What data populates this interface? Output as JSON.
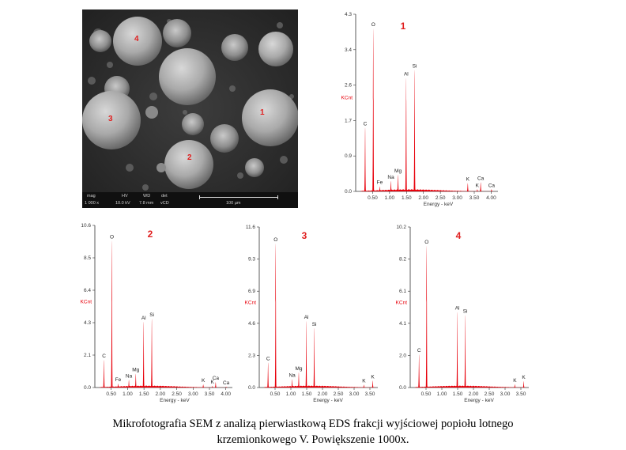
{
  "sem_image": {
    "particle_labels": [
      "4",
      "1",
      "3",
      "2"
    ],
    "databar": {
      "headers": [
        "mag",
        "HV",
        "WD",
        "det"
      ],
      "values": [
        "1 000 x",
        "10.0 kV",
        "7.8 mm",
        "vCD"
      ],
      "scale_label": "100 µm"
    }
  },
  "caption": {
    "line1": "Mikrofotografia SEM z analizą pierwiastkową EDS frakcji wyjściowej popiołu lotnego",
    "line2": "krzemionkowego V. Powiększenie 1000x."
  },
  "colors": {
    "spectrum": "#e8000b",
    "label": "#e02020",
    "axis": "#333333",
    "sem_bg": "#2b2b2b"
  },
  "chart_data": [
    {
      "type": "area",
      "title": "1",
      "xlabel": "Energy - keV",
      "ylabel": "KCnt",
      "xlim": [
        0,
        4.2
      ],
      "ylim": [
        0,
        4.3
      ],
      "xticks": [
        "0.50",
        "1.00",
        "1.50",
        "2.00",
        "2.50",
        "3.00",
        "3.50",
        "4.00"
      ],
      "yticks": [
        "0.0",
        "0.9",
        "1.7",
        "2.6",
        "3.4",
        "4.3"
      ],
      "peaks": [
        {
          "element": "C",
          "energy": 0.28,
          "counts": 1.55
        },
        {
          "element": "O",
          "energy": 0.52,
          "counts": 3.95
        },
        {
          "element": "Fe",
          "energy": 0.71,
          "counts": 0.12
        },
        {
          "element": "Na",
          "energy": 1.04,
          "counts": 0.25
        },
        {
          "element": "Mg",
          "energy": 1.25,
          "counts": 0.4
        },
        {
          "element": "Al",
          "energy": 1.49,
          "counts": 2.75
        },
        {
          "element": "Si",
          "energy": 1.74,
          "counts": 2.95
        },
        {
          "element": "K",
          "energy": 3.31,
          "counts": 0.2
        },
        {
          "element": "Ca",
          "energy": 3.69,
          "counts": 0.22
        },
        {
          "element": "K",
          "energy": 3.59,
          "counts": 0.05
        },
        {
          "element": "Ca",
          "energy": 4.01,
          "counts": 0.05
        }
      ]
    },
    {
      "type": "area",
      "title": "2",
      "xlabel": "Energy - keV",
      "ylabel": "KCnt",
      "xlim": [
        0,
        4.2
      ],
      "ylim": [
        0,
        10.6
      ],
      "xticks": [
        "0.50",
        "1.00",
        "1.50",
        "2.00",
        "2.50",
        "3.00",
        "3.50",
        "4.00"
      ],
      "yticks": [
        "0.0",
        "2.1",
        "4.3",
        "6.4",
        "8.5",
        "10.6"
      ],
      "peaks": [
        {
          "element": "C",
          "energy": 0.28,
          "counts": 1.8
        },
        {
          "element": "O",
          "energy": 0.52,
          "counts": 9.6
        },
        {
          "element": "Fe",
          "energy": 0.71,
          "counts": 0.25
        },
        {
          "element": "Na",
          "energy": 1.04,
          "counts": 0.5
        },
        {
          "element": "Mg",
          "energy": 1.25,
          "counts": 0.9
        },
        {
          "element": "Al",
          "energy": 1.49,
          "counts": 4.3
        },
        {
          "element": "Si",
          "energy": 1.74,
          "counts": 4.5
        },
        {
          "element": "K",
          "energy": 3.31,
          "counts": 0.2
        },
        {
          "element": "Ca",
          "energy": 3.69,
          "counts": 0.35
        },
        {
          "element": "K",
          "energy": 3.59,
          "counts": 0.1
        },
        {
          "element": "Ca",
          "energy": 4.01,
          "counts": 0.05
        }
      ]
    },
    {
      "type": "area",
      "title": "3",
      "xlabel": "Energy - keV",
      "ylabel": "KCnt",
      "xlim": [
        0,
        3.75
      ],
      "ylim": [
        0,
        11.6
      ],
      "xticks": [
        "0.50",
        "1.00",
        "1.50",
        "2.00",
        "2.50",
        "3.00",
        "3.50"
      ],
      "yticks": [
        "0.0",
        "2.3",
        "4.6",
        "6.9",
        "9.3",
        "11.6"
      ],
      "peaks": [
        {
          "element": "C",
          "energy": 0.28,
          "counts": 1.8
        },
        {
          "element": "O",
          "energy": 0.52,
          "counts": 10.4
        },
        {
          "element": "Na",
          "energy": 1.04,
          "counts": 0.6
        },
        {
          "element": "Mg",
          "energy": 1.25,
          "counts": 1.1
        },
        {
          "element": "Al",
          "energy": 1.49,
          "counts": 4.8
        },
        {
          "element": "Si",
          "energy": 1.74,
          "counts": 4.3
        },
        {
          "element": "K",
          "energy": 3.31,
          "counts": 0.2
        },
        {
          "element": "K",
          "energy": 3.59,
          "counts": 0.5
        }
      ]
    },
    {
      "type": "area",
      "title": "4",
      "xlabel": "Energy - keV",
      "ylabel": "KCnt",
      "xlim": [
        0,
        3.75
      ],
      "ylim": [
        0,
        10.2
      ],
      "xticks": [
        "0.50",
        "1.00",
        "1.50",
        "2.00",
        "2.50",
        "3.00",
        "3.50"
      ],
      "yticks": [
        "0.0",
        "2.0",
        "4.1",
        "6.1",
        "8.2",
        "10.2"
      ],
      "peaks": [
        {
          "element": "C",
          "energy": 0.28,
          "counts": 2.1
        },
        {
          "element": "O",
          "energy": 0.52,
          "counts": 9.0
        },
        {
          "element": "Al",
          "energy": 1.49,
          "counts": 4.8
        },
        {
          "element": "Si",
          "energy": 1.74,
          "counts": 4.6
        },
        {
          "element": "K",
          "energy": 3.31,
          "counts": 0.2
        },
        {
          "element": "K",
          "energy": 3.59,
          "counts": 0.4
        }
      ]
    }
  ]
}
